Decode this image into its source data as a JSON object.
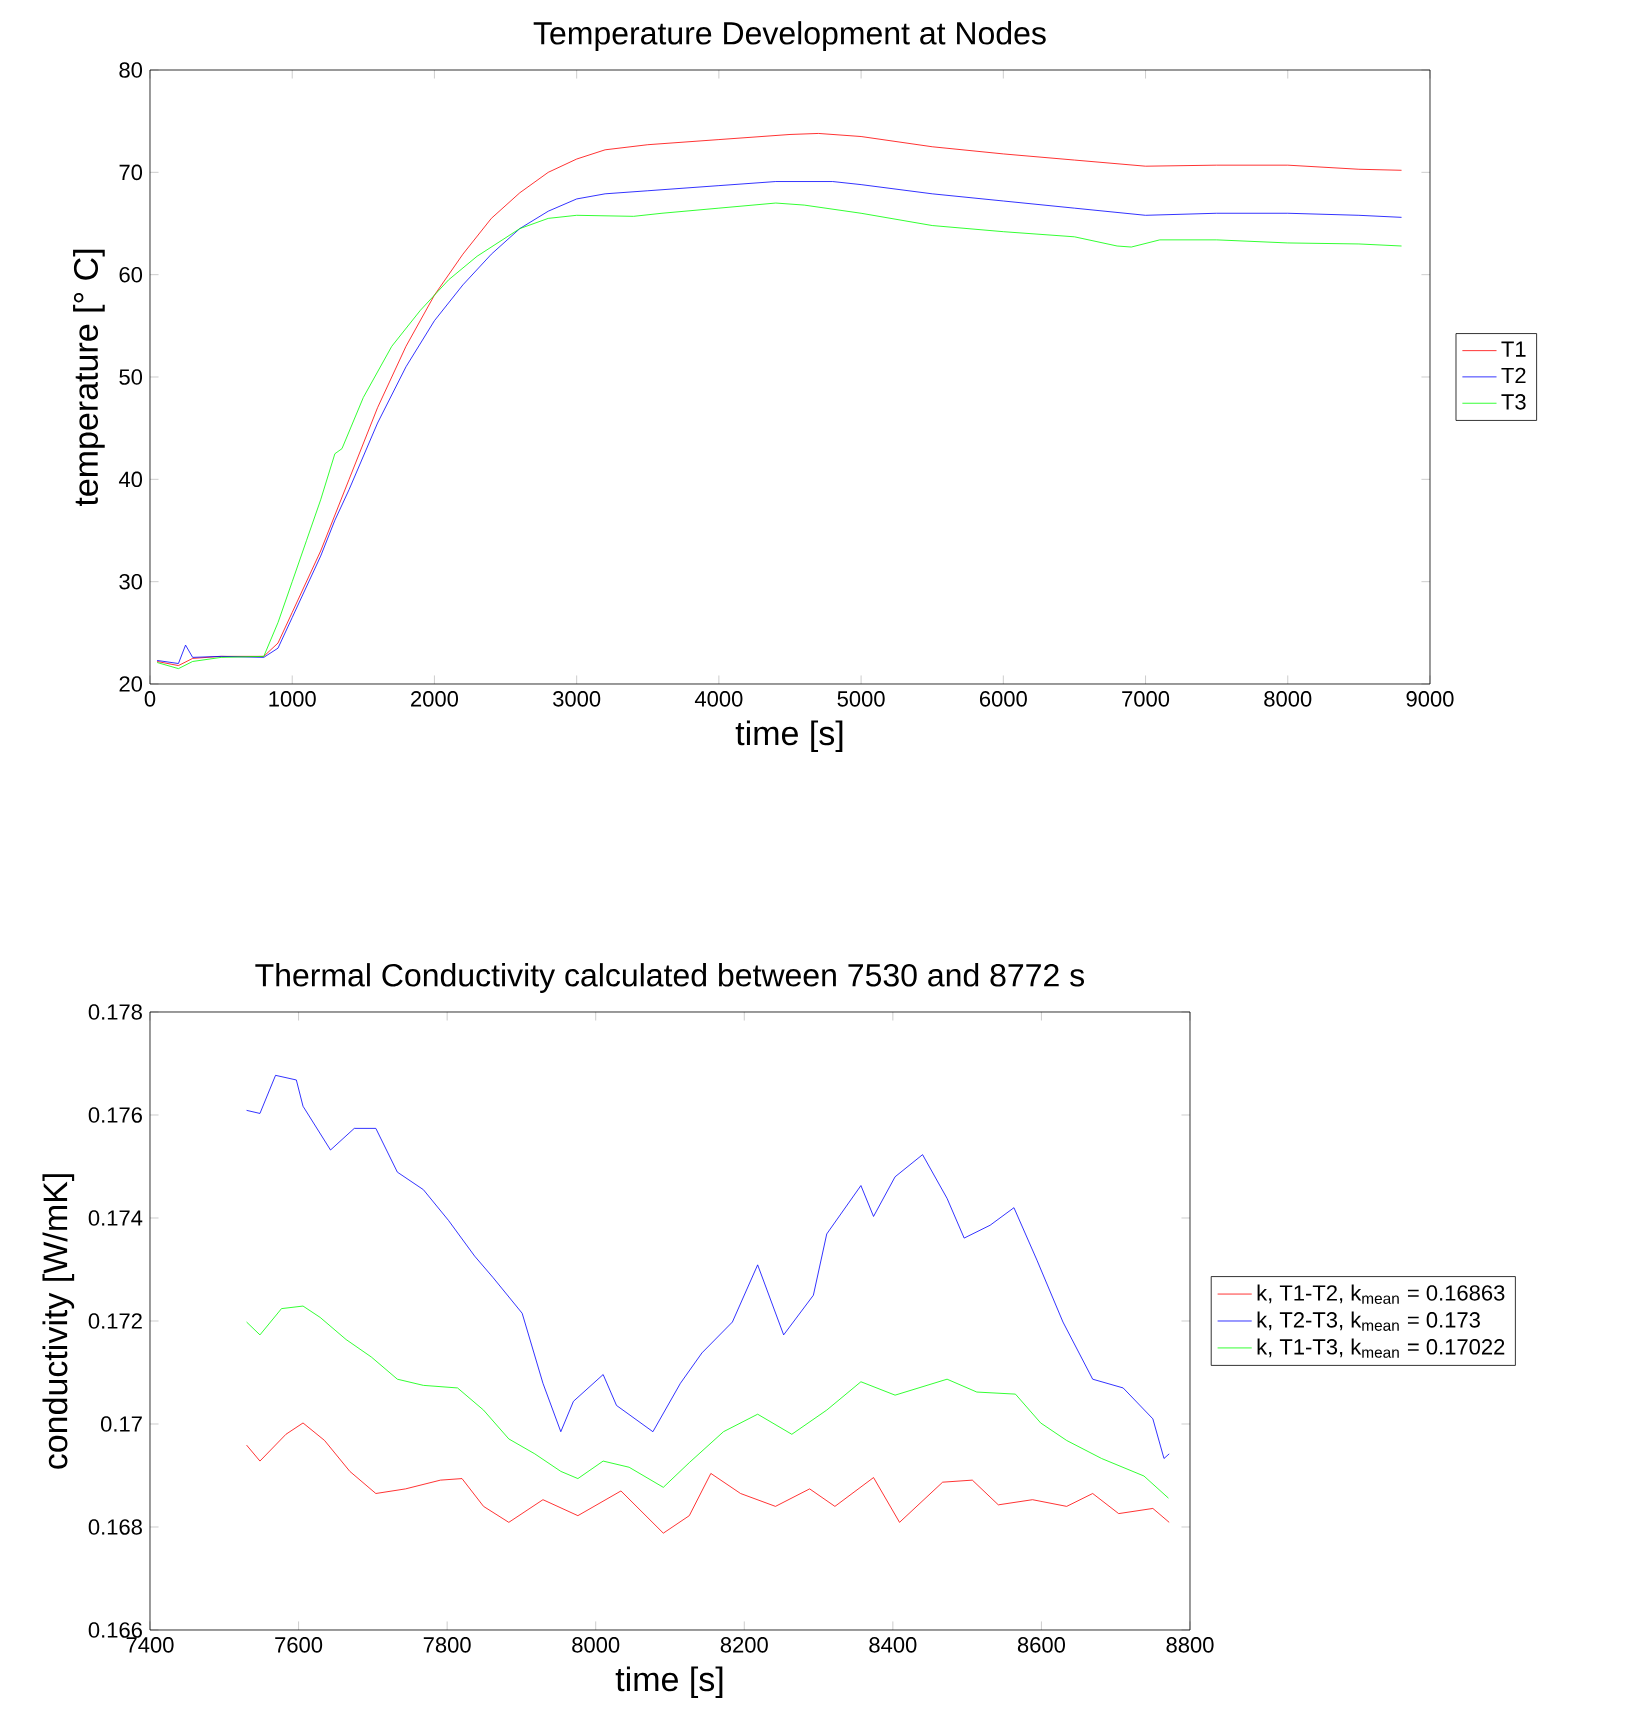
{
  "chart_data": [
    {
      "type": "line",
      "title": "Temperature Development at Nodes",
      "xlabel": "time [s]",
      "ylabel": "temperature [° C]",
      "xlim": [
        0,
        9000
      ],
      "ylim": [
        20,
        80
      ],
      "xticks": [
        0,
        1000,
        2000,
        3000,
        4000,
        5000,
        6000,
        7000,
        8000,
        9000
      ],
      "yticks": [
        20,
        30,
        40,
        50,
        60,
        70,
        80
      ],
      "legend": "right",
      "grid": false,
      "marker": "none",
      "line_style": "solid",
      "series": [
        {
          "name": "T1",
          "color": "#ff0000",
          "x": [
            50,
            200,
            300,
            500,
            800,
            900,
            1000,
            1200,
            1400,
            1600,
            1800,
            2000,
            2200,
            2400,
            2600,
            2800,
            3000,
            3200,
            3500,
            4000,
            4500,
            4700,
            5000,
            5500,
            6000,
            6500,
            7000,
            7500,
            8000,
            8500,
            8800
          ],
          "values": [
            22.2,
            21.8,
            22.5,
            22.7,
            22.7,
            24,
            27,
            33,
            40,
            47,
            53,
            58,
            62,
            65.5,
            68,
            70,
            71.3,
            72.2,
            72.7,
            73.2,
            73.7,
            73.8,
            73.5,
            72.5,
            71.8,
            71.2,
            70.6,
            70.7,
            70.7,
            70.3,
            70.2
          ]
        },
        {
          "name": "T2",
          "color": "#0000ff",
          "x": [
            50,
            200,
            250,
            300,
            500,
            800,
            900,
            1000,
            1200,
            1300,
            1400,
            1600,
            1800,
            2000,
            2200,
            2400,
            2600,
            2800,
            3000,
            3200,
            3500,
            4000,
            4400,
            4800,
            5000,
            5500,
            6000,
            6500,
            7000,
            7500,
            8000,
            8500,
            8800
          ],
          "values": [
            22.3,
            22,
            23.8,
            22.6,
            22.7,
            22.6,
            23.5,
            26.5,
            32.5,
            36,
            39,
            45.5,
            51,
            55.5,
            59,
            62,
            64.5,
            66.2,
            67.4,
            67.9,
            68.2,
            68.7,
            69.1,
            69.1,
            68.8,
            67.9,
            67.2,
            66.5,
            65.8,
            66,
            66,
            65.8,
            65.6
          ]
        },
        {
          "name": "T3",
          "color": "#00ff00",
          "x": [
            50,
            200,
            300,
            500,
            800,
            900,
            1000,
            1100,
            1200,
            1300,
            1350,
            1500,
            1700,
            1900,
            2100,
            2300,
            2600,
            2800,
            3000,
            3400,
            3600,
            4000,
            4400,
            4600,
            5000,
            5500,
            6000,
            6500,
            6800,
            6900,
            7100,
            7500,
            8000,
            8500,
            8800
          ],
          "values": [
            22.1,
            21.5,
            22.2,
            22.6,
            22.7,
            26,
            30,
            34,
            38,
            42.5,
            43,
            48,
            53,
            56.5,
            59.5,
            61.8,
            64.5,
            65.5,
            65.8,
            65.7,
            66,
            66.5,
            67,
            66.8,
            66,
            64.8,
            64.2,
            63.7,
            62.8,
            62.7,
            63.4,
            63.4,
            63.1,
            63,
            62.8
          ]
        }
      ]
    },
    {
      "type": "line",
      "title": "Thermal Conductivity calculated between 7530 and 8772 s",
      "xlabel": "time [s]",
      "ylabel": "conductivity [W/mK]",
      "xlim": [
        7400,
        8800
      ],
      "ylim": [
        0.166,
        0.178
      ],
      "xticks": [
        7400,
        7600,
        7800,
        8000,
        8200,
        8400,
        8600,
        8800
      ],
      "yticks": [
        0.166,
        0.168,
        0.17,
        0.172,
        0.174,
        0.176,
        0.178
      ],
      "legend": "right",
      "grid": false,
      "marker": "none",
      "line_style": "solid",
      "series": [
        {
          "name": "k, T1-T2, k$_{mean}$ = 0.16863",
          "color": "#ff0000",
          "x": [
            7530,
            7548,
            7583,
            7606,
            7635,
            7669,
            7704,
            7744,
            7791,
            7820,
            7849,
            7883,
            7929,
            7976,
            8034,
            8091,
            8126,
            8155,
            8195,
            8242,
            8288,
            8322,
            8374,
            8409,
            8467,
            8507,
            8542,
            8588,
            8634,
            8669,
            8704,
            8750,
            8772
          ],
          "values": [
            0.16959,
            0.16928,
            0.1698,
            0.17002,
            0.16968,
            0.16908,
            0.16865,
            0.16874,
            0.16891,
            0.16894,
            0.1684,
            0.16809,
            0.16853,
            0.16822,
            0.1687,
            0.16788,
            0.16822,
            0.16904,
            0.16865,
            0.1684,
            0.16874,
            0.1684,
            0.16896,
            0.16809,
            0.16887,
            0.16891,
            0.16843,
            0.16853,
            0.1684,
            0.16865,
            0.16826,
            0.16836,
            0.16809
          ]
        },
        {
          "name": "k, T2-T3, k$_{mean}$ = 0.173",
          "color": "#0000ff",
          "x": [
            7530,
            7548,
            7569,
            7597,
            7606,
            7643,
            7675,
            7704,
            7733,
            7768,
            7802,
            7837,
            7862,
            7901,
            7929,
            7953,
            7970,
            8010,
            8028,
            8077,
            8114,
            8143,
            8184,
            8218,
            8253,
            8293,
            8311,
            8357,
            8374,
            8403,
            8440,
            8473,
            8496,
            8531,
            8563,
            8594,
            8629,
            8669,
            8710,
            8750,
            8765,
            8772
          ],
          "values": [
            0.17609,
            0.17603,
            0.17677,
            0.17668,
            0.17617,
            0.17532,
            0.17574,
            0.17574,
            0.17489,
            0.17455,
            0.17395,
            0.17326,
            0.17284,
            0.17215,
            0.17079,
            0.16985,
            0.17044,
            0.17096,
            0.17036,
            0.16985,
            0.17079,
            0.17138,
            0.17198,
            0.17309,
            0.17173,
            0.1725,
            0.17369,
            0.17463,
            0.17403,
            0.1748,
            0.17523,
            0.17438,
            0.17361,
            0.17386,
            0.1742,
            0.17318,
            0.17198,
            0.17087,
            0.1707,
            0.1701,
            0.16933,
            0.16942
          ]
        },
        {
          "name": "k, T1-T3, k$_{mean}$ = 0.17022",
          "color": "#00ff00",
          "x": [
            7530,
            7548,
            7577,
            7606,
            7629,
            7664,
            7698,
            7733,
            7768,
            7814,
            7849,
            7883,
            7918,
            7953,
            7976,
            8010,
            8045,
            8091,
            8126,
            8172,
            8218,
            8264,
            8311,
            8357,
            8403,
            8473,
            8513,
            8565,
            8599,
            8634,
            8681,
            8738,
            8771
          ],
          "values": [
            0.17198,
            0.17173,
            0.17224,
            0.17229,
            0.17207,
            0.17164,
            0.1713,
            0.17087,
            0.17075,
            0.1707,
            0.17027,
            0.16971,
            0.16942,
            0.16908,
            0.16894,
            0.16928,
            0.16916,
            0.16877,
            0.16925,
            0.16985,
            0.17019,
            0.1698,
            0.17027,
            0.17082,
            0.17056,
            0.17087,
            0.17062,
            0.17058,
            0.17002,
            0.16968,
            0.16933,
            0.16899,
            0.16856
          ]
        }
      ]
    }
  ]
}
